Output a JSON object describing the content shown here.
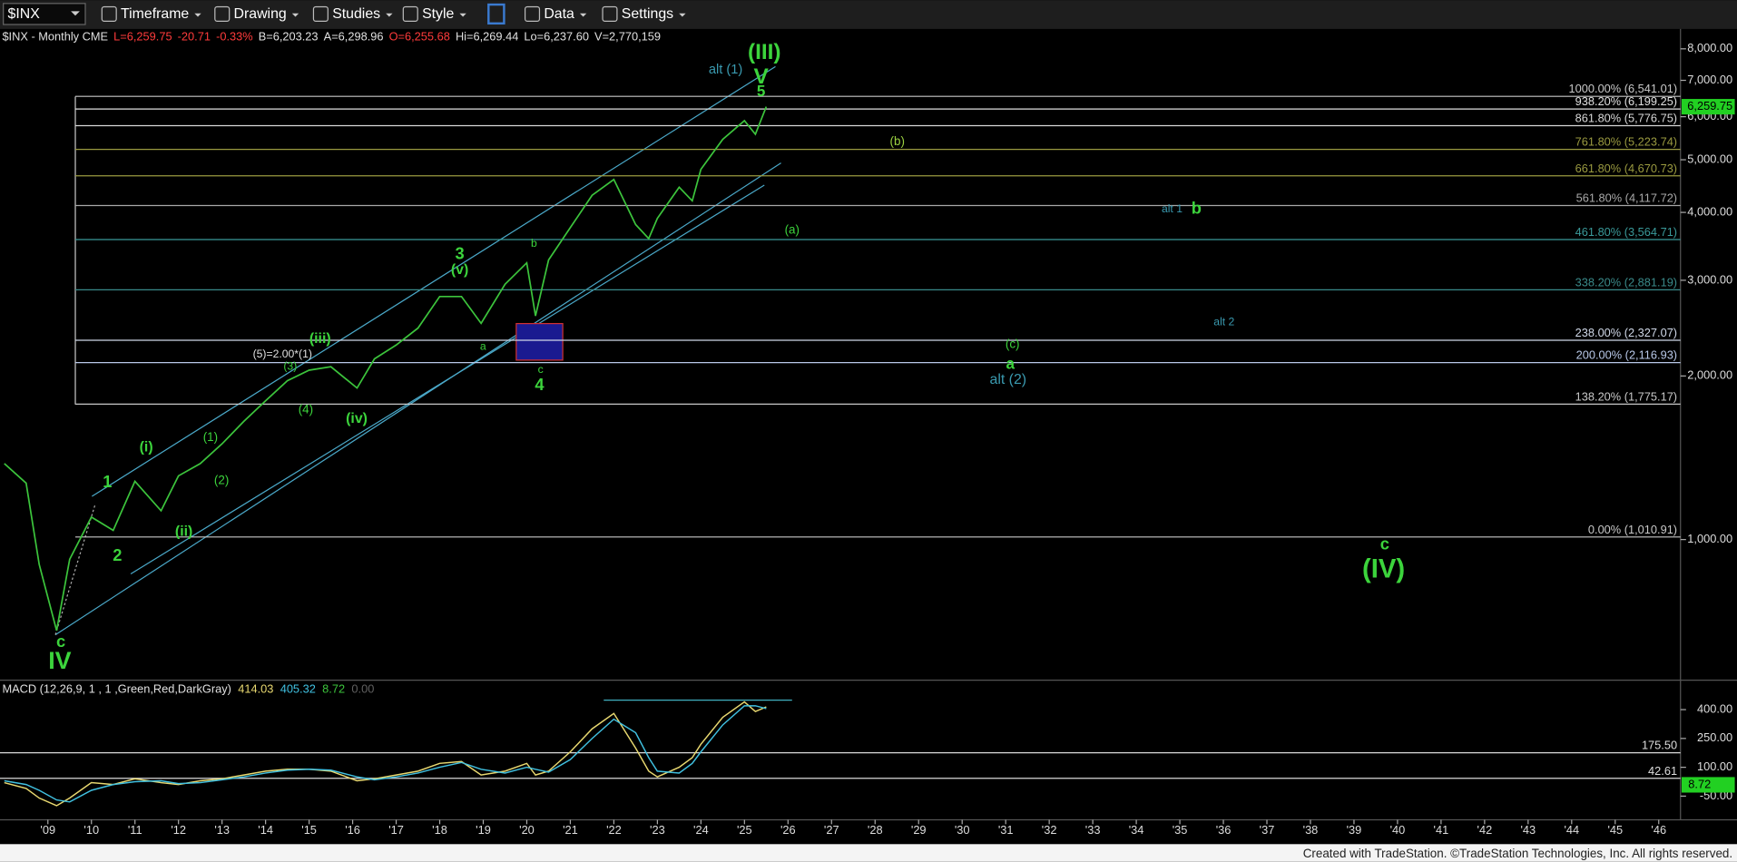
{
  "toolbar": {
    "symbol": "$INX",
    "menus": [
      "Timeframe",
      "Drawing",
      "Studies",
      "Style",
      "Data",
      "Settings"
    ]
  },
  "chart_data": [
    {
      "type": "line",
      "title": "$INX - Monthly CME",
      "quote": [
        {
          "text": "L=6,259.75",
          "color": "#ff3b3b"
        },
        {
          "text": "-20.71",
          "color": "#ff3b3b"
        },
        {
          "text": "-0.33%",
          "color": "#ff3b3b"
        },
        {
          "text": "B=6,203.23",
          "color": "#e0e0e0"
        },
        {
          "text": "A=6,298.96",
          "color": "#e0e0e0"
        },
        {
          "text": "O=6,255.68",
          "color": "#ff3b3b"
        },
        {
          "text": "Hi=6,269.44",
          "color": "#e0e0e0"
        },
        {
          "text": "Lo=6,237.60",
          "color": "#e0e0e0"
        },
        {
          "text": "V=2,770,159",
          "color": "#e0e0e0"
        }
      ],
      "log_scale": true,
      "color": "#3cc43c",
      "x": [
        2008.0,
        2008.5,
        2008.8,
        2009.2,
        2009.5,
        2010.0,
        2010.5,
        2011.0,
        2011.6,
        2012.0,
        2012.5,
        2013.0,
        2013.5,
        2014.0,
        2014.5,
        2015.0,
        2015.5,
        2016.1,
        2016.5,
        2017.0,
        2017.5,
        2018.0,
        2018.5,
        2018.95,
        2019.5,
        2020.0,
        2020.2,
        2020.5,
        2021.0,
        2021.5,
        2022.0,
        2022.5,
        2022.8,
        2023.0,
        2023.5,
        2023.8,
        2024.0,
        2024.5,
        2025.0,
        2025.25,
        2025.5
      ],
      "values": [
        1380,
        1270,
        900,
        680,
        920,
        1100,
        1040,
        1280,
        1130,
        1310,
        1380,
        1500,
        1650,
        1800,
        1960,
        2050,
        2080,
        1900,
        2150,
        2280,
        2450,
        2800,
        2800,
        2500,
        2950,
        3230,
        2580,
        3270,
        3750,
        4300,
        4600,
        3800,
        3580,
        3900,
        4450,
        4200,
        4800,
        5450,
        5900,
        5570,
        6259.75
      ],
      "last_label": "6,259.75",
      "xlim": [
        2007.9,
        2046.5
      ],
      "ylim": [
        551,
        8703
      ],
      "yticks": [
        {
          "value": 1000,
          "label": "1,000.00"
        },
        {
          "value": 2000,
          "label": "2,000.00"
        },
        {
          "value": 3000,
          "label": "3,000.00"
        },
        {
          "value": 4000,
          "label": "4,000.00"
        },
        {
          "value": 5000,
          "label": "5,000.00"
        },
        {
          "value": 6000,
          "label": "6,000.00"
        },
        {
          "value": 7000,
          "label": "7,000.00"
        },
        {
          "value": 8000,
          "label": "8,000.00"
        }
      ],
      "fib_levels": [
        {
          "value": 6541.01,
          "label": "1000.00% (6,541.01)",
          "color": "#c8c8c8"
        },
        {
          "value": 6199.25,
          "label": "938.20% (6,199.25)",
          "color": "#e0e0e0"
        },
        {
          "value": 5776.75,
          "label": "861.80% (5,776.75)",
          "color": "#d8d8d8"
        },
        {
          "value": 5223.74,
          "label": "761.80% (5,223.74)",
          "color": "#9a9a40"
        },
        {
          "value": 4670.73,
          "label": "661.80% (4,670.73)",
          "color": "#9a9a40"
        },
        {
          "value": 4117.72,
          "label": "561.80% (4,117.72)",
          "color": "#a8a8a8"
        },
        {
          "value": 3564.71,
          "label": "461.80% (3,564.71)",
          "color": "#3a9a9a"
        },
        {
          "value": 2881.19,
          "label": "338.20% (2,881.19)",
          "color": "#3a8a8a"
        },
        {
          "value": 2327.07,
          "label": "238.00% (2,327.07)",
          "color": "#d0d8e8"
        },
        {
          "value": 2116.93,
          "label": "200.00% (2,116.93)",
          "color": "#b8c8e8"
        },
        {
          "value": 1775.17,
          "label": "138.20% (1,775.17)",
          "color": "#c8c8c8"
        },
        {
          "value": 1010.91,
          "label": "0.00% (1,010.91)",
          "color": "#c8c8c8"
        }
      ],
      "annotations": [
        "(III)",
        "alt (1)",
        "V",
        "5",
        "(b)",
        "(a)",
        "alt 1",
        "b",
        "alt 2",
        "(c)",
        "a",
        "alt (2)",
        "3",
        "(v)",
        "b",
        "a",
        "c",
        "4",
        "(iii)",
        "(5)=2.00*(1)",
        "(3)",
        "(4)",
        "(iv)",
        "(1)",
        "(i)",
        "(2)",
        "1",
        "(ii)",
        "2",
        "c",
        "IV",
        "c",
        "(IV)"
      ]
    },
    {
      "type": "line",
      "title": "MACD (12,26,9, 1 , 1 ,Green,Red,DarkGray)",
      "readouts": [
        414.03,
        405.32,
        8.72,
        {
          "value": 0,
          "label": "0.00"
        }
      ],
      "readout_colors": [
        "#e8d870",
        "#40c0e0",
        "#3cc43c",
        "#606060"
      ],
      "series": [
        {
          "color": "#e8d870",
          "values": [
            20,
            -10,
            -60,
            -100,
            -60,
            20,
            10,
            40,
            20,
            10,
            30,
            40,
            60,
            80,
            90,
            90,
            80,
            30,
            40,
            60,
            80,
            120,
            130,
            60,
            80,
            120,
            60,
            80,
            180,
            300,
            380,
            200,
            80,
            50,
            100,
            150,
            220,
            360,
            440,
            390,
            414.03
          ]
        },
        {
          "color": "#40c0e0",
          "values": [
            30,
            10,
            -20,
            -70,
            -80,
            -20,
            10,
            25,
            30,
            15,
            20,
            35,
            50,
            70,
            85,
            90,
            85,
            50,
            35,
            50,
            70,
            100,
            125,
            90,
            70,
            100,
            90,
            75,
            140,
            250,
            350,
            280,
            150,
            80,
            70,
            120,
            180,
            320,
            420,
            420,
            405.32
          ]
        }
      ],
      "marker_label": "8.72",
      "xlim": [
        2007.9,
        2046.5
      ],
      "ylim": [
        -173,
        553
      ],
      "yticks": [
        {
          "value": -50,
          "label": "-50.00"
        },
        {
          "value": 100,
          "label": "100.00"
        },
        {
          "value": 250,
          "label": "250.00"
        },
        {
          "value": 400,
          "label": "400.00"
        }
      ],
      "levels": [
        {
          "value": 175.5,
          "label": "175.50"
        },
        {
          "value": 42.61,
          "label": "42.61"
        }
      ],
      "xticks": [
        {
          "value": 2009,
          "label": "'09"
        },
        {
          "value": 2010,
          "label": "'10"
        },
        {
          "value": 2011,
          "label": "'11"
        },
        {
          "value": 2012,
          "label": "'12"
        },
        {
          "value": 2013,
          "label": "'13"
        },
        {
          "value": 2014,
          "label": "'14"
        },
        {
          "value": 2015,
          "label": "'15"
        },
        {
          "value": 2016,
          "label": "'16"
        },
        {
          "value": 2017,
          "label": "'17"
        },
        {
          "value": 2018,
          "label": "'18"
        },
        {
          "value": 2019,
          "label": "'19"
        },
        {
          "value": 2020,
          "label": "'20"
        },
        {
          "value": 2021,
          "label": "'21"
        },
        {
          "value": 2022,
          "label": "'22"
        },
        {
          "value": 2023,
          "label": "'23"
        },
        {
          "value": 2024,
          "label": "'24"
        },
        {
          "value": 2025,
          "label": "'25"
        },
        {
          "value": 2026,
          "label": "'26"
        },
        {
          "value": 2027,
          "label": "'27"
        },
        {
          "value": 2028,
          "label": "'28"
        },
        {
          "value": 2029,
          "label": "'29"
        },
        {
          "value": 2030,
          "label": "'30"
        },
        {
          "value": 2031,
          "label": "'31"
        },
        {
          "value": 2032,
          "label": "'32"
        },
        {
          "value": 2033,
          "label": "'33"
        },
        {
          "value": 2034,
          "label": "'34"
        },
        {
          "value": 2035,
          "label": "'35"
        },
        {
          "value": 2036,
          "label": "'36"
        },
        {
          "value": 2037,
          "label": "'37"
        },
        {
          "value": 2038,
          "label": "'38"
        },
        {
          "value": 2039,
          "label": "'39"
        },
        {
          "value": 2040,
          "label": "'40"
        },
        {
          "value": 2041,
          "label": "'41"
        },
        {
          "value": 2042,
          "label": "'42"
        },
        {
          "value": 2043,
          "label": "'43"
        },
        {
          "value": 2044,
          "label": "'44"
        },
        {
          "value": 2045,
          "label": "'45"
        },
        {
          "value": 2046,
          "label": "'46"
        }
      ]
    }
  ],
  "footer": "Created with TradeStation. ©TradeStation Technologies, Inc. All rights reserved."
}
